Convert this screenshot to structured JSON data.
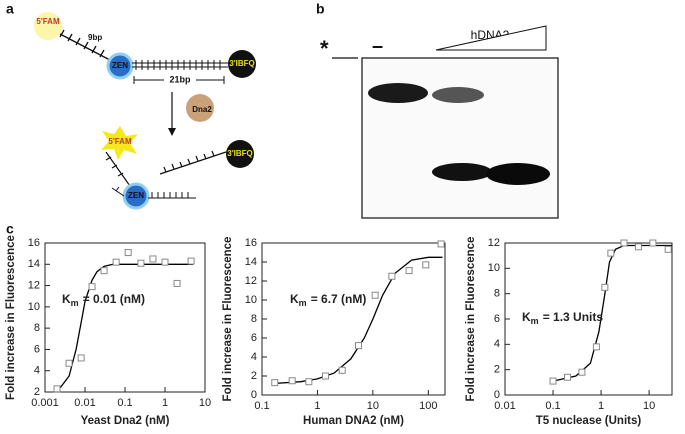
{
  "panels": {
    "a": {
      "label": "a",
      "fam_top": "5'FAM",
      "bp9": "9bp",
      "zen_top": "ZEN",
      "ibfq_top": "3'IBFQ",
      "bp21": "21bp",
      "enzyme": "Dna2",
      "fam_bottom": "5'FAM",
      "ibfq_bottom": "3'IBFQ",
      "zen_bottom": "ZEN"
    },
    "b": {
      "label": "b",
      "star": "*",
      "minus": "–",
      "gradient": "hDNA2"
    },
    "c": {
      "label": "c"
    }
  },
  "chart_data": [
    {
      "type": "scatter",
      "log_x": true,
      "xlabel": "Yeast Dna2 (nM)",
      "ylabel": "Fold increase in Fluorescence",
      "annotation": {
        "symbol": "K",
        "subscript": "m",
        "text": "= 0.01 (nM)"
      },
      "xlim": [
        0.001,
        10
      ],
      "xticks": [
        0.001,
        0.01,
        0.1,
        1,
        10
      ],
      "ylim": [
        2,
        16
      ],
      "yticks": [
        2,
        4,
        6,
        8,
        10,
        12,
        14,
        16
      ],
      "points": {
        "color": "#888888",
        "x": [
          0.002,
          0.004,
          0.008,
          0.015,
          0.03,
          0.06,
          0.12,
          0.25,
          0.5,
          1.0,
          2.0,
          4.5
        ],
        "values": [
          2.3,
          4.7,
          5.2,
          11.9,
          13.4,
          14.2,
          15.1,
          14.1,
          14.5,
          14.2,
          12.2,
          14.3
        ]
      },
      "fit": {
        "color": "#000000",
        "x": [
          0.002,
          0.004,
          0.006,
          0.008,
          0.01,
          0.015,
          0.02,
          0.03,
          0.05,
          0.1,
          1,
          5
        ],
        "values": [
          2.0,
          3.5,
          6,
          8.5,
          10.5,
          12.5,
          13.3,
          13.8,
          14,
          14,
          14,
          14
        ]
      }
    },
    {
      "type": "scatter",
      "log_x": true,
      "xlabel": "Human DNA2 (nM)",
      "ylabel": "Fold increase in Fluorescence",
      "annotation": {
        "symbol": "K",
        "subscript": "m",
        "text": "= 6.7 (nM)"
      },
      "xlim": [
        0.1,
        200
      ],
      "xticks": [
        0.1,
        1,
        10,
        100
      ],
      "ylim": [
        0,
        16
      ],
      "yticks": [
        0,
        2,
        4,
        6,
        8,
        10,
        12,
        14,
        16
      ],
      "points": {
        "color": "#888888",
        "x": [
          0.17,
          0.35,
          0.7,
          1.4,
          2.8,
          5.5,
          11,
          22,
          45,
          90,
          170
        ],
        "values": [
          1.3,
          1.5,
          1.4,
          2.0,
          2.6,
          5.2,
          10.5,
          12.5,
          13.1,
          13.7,
          15.9
        ]
      },
      "fit": {
        "color": "#000000",
        "x": [
          0.15,
          0.5,
          1,
          2,
          4,
          7,
          10,
          15,
          25,
          50,
          100,
          180
        ],
        "values": [
          1.2,
          1.4,
          1.7,
          2.3,
          3.8,
          6,
          8,
          10.5,
          12.8,
          14.2,
          14.5,
          14.5
        ]
      }
    },
    {
      "type": "scatter",
      "log_x": true,
      "xlabel": "T5 nuclease (Units)",
      "ylabel": "Fold increase in Fluorescence",
      "annotation": {
        "symbol": "K",
        "subscript": "m",
        "text": "= 1.3 Units"
      },
      "xlim": [
        0.01,
        30
      ],
      "xticks": [
        0.01,
        0.1,
        1,
        10
      ],
      "ylim": [
        0,
        12
      ],
      "yticks": [
        0,
        2,
        4,
        6,
        8,
        10,
        12
      ],
      "points": {
        "color": "#888888",
        "x": [
          0.1,
          0.2,
          0.4,
          0.8,
          1.2,
          1.6,
          3,
          6,
          12,
          25
        ],
        "values": [
          1.1,
          1.4,
          1.8,
          3.8,
          8.5,
          11.2,
          12,
          11.7,
          12,
          11.5
        ]
      },
      "fit": {
        "color": "#000000",
        "x": [
          0.1,
          0.3,
          0.6,
          0.9,
          1.2,
          1.5,
          2,
          3,
          30
        ],
        "values": [
          1.1,
          1.5,
          2.5,
          5,
          8,
          10.5,
          11.5,
          11.8,
          11.8
        ]
      }
    }
  ]
}
